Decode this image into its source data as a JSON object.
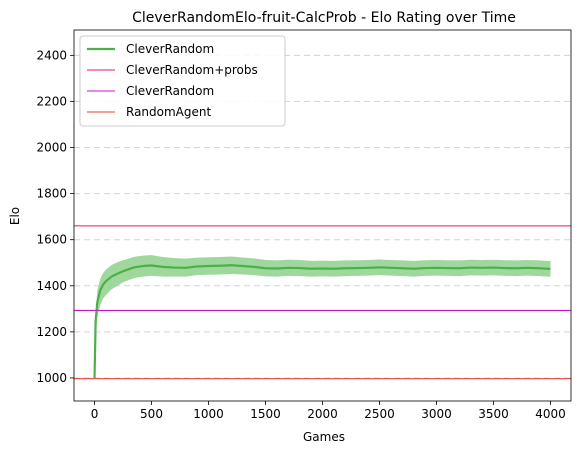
{
  "chart_data": {
    "type": "line",
    "title": "CleverRandomElo-fruit-CalcProb - Elo Rating over Time",
    "xlabel": "Games",
    "ylabel": "Elo",
    "xlim": [
      -180,
      4180
    ],
    "ylim": [
      900,
      2510
    ],
    "xticks": [
      0,
      500,
      1000,
      1500,
      2000,
      2500,
      3000,
      3500,
      4000
    ],
    "yticks": [
      1000,
      1200,
      1400,
      1600,
      1800,
      2000,
      2200,
      2400
    ],
    "grid": "horizontal-dashed",
    "legend_position": "top-left",
    "series": [
      {
        "name": "CleverRandom",
        "kind": "line-with-band",
        "color": "#4daf4a",
        "band_color": "#9fd89d",
        "x": [
          0,
          10,
          25,
          50,
          75,
          100,
          150,
          200,
          250,
          300,
          350,
          400,
          450,
          500,
          600,
          700,
          800,
          900,
          1000,
          1100,
          1200,
          1300,
          1400,
          1500,
          1600,
          1700,
          1800,
          1900,
          2000,
          2100,
          2200,
          2300,
          2400,
          2500,
          2600,
          2700,
          2800,
          2900,
          3000,
          3100,
          3200,
          3300,
          3400,
          3500,
          3600,
          3700,
          3800,
          3900,
          4000
        ],
        "y": [
          1000,
          1250,
          1330,
          1380,
          1405,
          1420,
          1440,
          1452,
          1463,
          1472,
          1480,
          1484,
          1487,
          1488,
          1482,
          1479,
          1478,
          1484,
          1486,
          1487,
          1489,
          1486,
          1482,
          1476,
          1475,
          1478,
          1477,
          1474,
          1475,
          1474,
          1476,
          1477,
          1478,
          1480,
          1478,
          1476,
          1474,
          1477,
          1478,
          1477,
          1476,
          1479,
          1478,
          1479,
          1477,
          1476,
          1478,
          1476,
          1473
        ],
        "lower": [
          1000,
          1190,
          1265,
          1315,
          1345,
          1360,
          1385,
          1400,
          1415,
          1425,
          1433,
          1438,
          1441,
          1443,
          1440,
          1440,
          1440,
          1446,
          1448,
          1449,
          1451,
          1449,
          1446,
          1441,
          1440,
          1443,
          1442,
          1440,
          1441,
          1440,
          1442,
          1443,
          1444,
          1446,
          1444,
          1442,
          1440,
          1443,
          1444,
          1443,
          1442,
          1445,
          1444,
          1445,
          1443,
          1442,
          1444,
          1442,
          1439
        ],
        "upper": [
          1000,
          1290,
          1380,
          1430,
          1455,
          1470,
          1490,
          1502,
          1510,
          1518,
          1526,
          1529,
          1532,
          1533,
          1525,
          1520,
          1518,
          1522,
          1524,
          1525,
          1527,
          1523,
          1519,
          1512,
          1510,
          1513,
          1512,
          1508,
          1509,
          1508,
          1510,
          1511,
          1512,
          1514,
          1512,
          1510,
          1508,
          1511,
          1512,
          1511,
          1510,
          1513,
          1512,
          1513,
          1511,
          1510,
          1512,
          1510,
          1507
        ]
      },
      {
        "name": "CleverRandom+probs",
        "kind": "hline",
        "color": "#e8176b",
        "value": 1660
      },
      {
        "name": "CleverRandom",
        "kind": "hline",
        "color": "#c71ac7",
        "value": 1293
      },
      {
        "name": "RandomAgent",
        "kind": "hline",
        "color": "#e8433a",
        "value": 997
      }
    ]
  }
}
